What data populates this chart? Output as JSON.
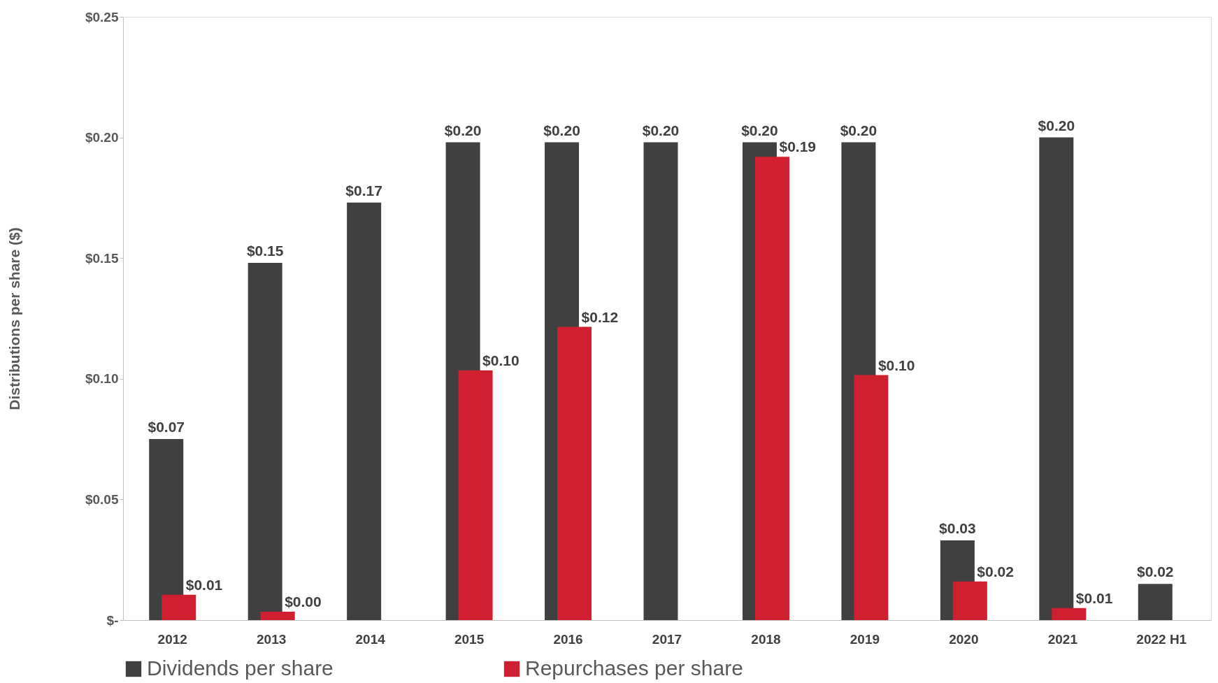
{
  "chart_data": {
    "type": "bar",
    "ylabel": "Distributions per share ($)",
    "categories": [
      "2012",
      "2013",
      "2014",
      "2015",
      "2016",
      "2017",
      "2018",
      "2019",
      "2020",
      "2021",
      "2022 H1"
    ],
    "series": [
      {
        "name": "Dividends per share",
        "color": "#404040",
        "values": [
          0.075,
          0.148,
          0.173,
          0.198,
          0.198,
          0.198,
          0.198,
          0.198,
          0.033,
          0.2,
          0.015
        ],
        "value_labels": [
          "$0.07",
          "$0.15",
          "$0.17",
          "$0.20",
          "$0.20",
          "$0.20",
          "$0.20",
          "$0.20",
          "$0.03",
          "$0.20",
          "$0.02"
        ]
      },
      {
        "name": "Repurchases per share",
        "color": "#d01f2f",
        "values": [
          0.0105,
          0.0035,
          null,
          0.1035,
          0.1215,
          null,
          0.192,
          0.1015,
          0.016,
          0.005,
          null
        ],
        "value_labels": [
          "$0.01",
          "$0.00",
          null,
          "$0.10",
          "$0.12",
          null,
          "$0.19",
          "$0.10",
          "$0.02",
          "$0.01",
          null
        ]
      }
    ],
    "ylim": [
      0,
      0.25
    ],
    "yticks": [
      {
        "value": 0,
        "label": "$-"
      },
      {
        "value": 0.05,
        "label": "$0.05"
      },
      {
        "value": 0.1,
        "label": "$0.10"
      },
      {
        "value": 0.15,
        "label": "$0.15"
      },
      {
        "value": 0.2,
        "label": "$0.20"
      },
      {
        "value": 0.25,
        "label": "$0.25"
      }
    ],
    "grid": false,
    "legend": "bottom"
  }
}
